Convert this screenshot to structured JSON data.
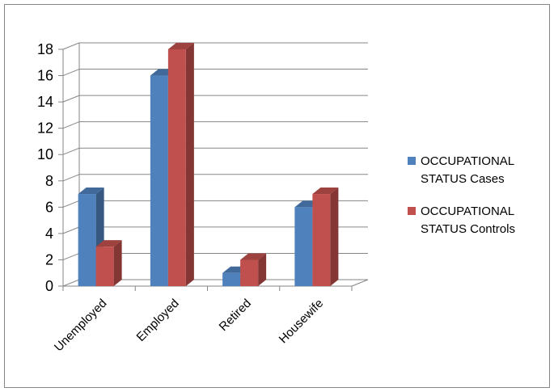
{
  "chart_data": {
    "type": "bar",
    "categories": [
      "Unemployed",
      "Employed",
      "Retired",
      "Housewife"
    ],
    "series": [
      {
        "name": "OCCUPATIONAL STATUS Cases",
        "legend_lines": [
          "OCCUPATIONAL",
          "STATUS Cases"
        ],
        "values": [
          7,
          16,
          1,
          6
        ],
        "color": "#4f81bd"
      },
      {
        "name": "OCCUPATIONAL STATUS Controls",
        "legend_lines": [
          "OCCUPATIONAL",
          "STATUS Controls"
        ],
        "values": [
          3,
          18,
          2,
          7
        ],
        "color": "#c0504d"
      }
    ],
    "ylim": [
      0,
      18
    ],
    "yticks": [
      0,
      2,
      4,
      6,
      8,
      10,
      12,
      14,
      16,
      18
    ],
    "grid": true,
    "legend": "right",
    "style": "3d-clustered-column"
  }
}
